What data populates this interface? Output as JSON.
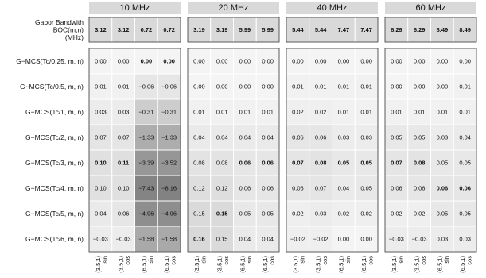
{
  "chart_data": {
    "type": "heatmap",
    "panels": [
      {
        "title": "10 MHz",
        "bandwidth": [
          "3.12",
          "3.12",
          "0.72",
          "0.72"
        ],
        "cells": [
          [
            "0.00",
            "0.00",
            "0.00",
            "0.00"
          ],
          [
            "0.01",
            "0.01",
            "-0.06",
            "-0.06"
          ],
          [
            "0.03",
            "0.03",
            "-0.31",
            "-0.31"
          ],
          [
            "0.07",
            "0.07",
            "-1.33",
            "-1.33"
          ],
          [
            "0.10",
            "0.11",
            "-3.39",
            "-3.52"
          ],
          [
            "0.10",
            "0.10",
            "-7.43",
            "-8.16"
          ],
          [
            "0.04",
            "0.06",
            "-4.96",
            "-4.96"
          ],
          [
            "-0.03",
            "-0.03",
            "-1.58",
            "-1.58"
          ]
        ],
        "bold": [
          [
            0,
            2
          ],
          [
            0,
            3
          ],
          [
            4,
            0
          ],
          [
            4,
            1
          ]
        ]
      },
      {
        "title": "20 MHz",
        "bandwidth": [
          "3.19",
          "3.19",
          "5.99",
          "5.99"
        ],
        "cells": [
          [
            "0.00",
            "0.00",
            "0.00",
            "0.00"
          ],
          [
            "0.00",
            "0.00",
            "0.00",
            "0.00"
          ],
          [
            "0.01",
            "0.01",
            "0.01",
            "0.01"
          ],
          [
            "0.04",
            "0.04",
            "0.04",
            "0.04"
          ],
          [
            "0.08",
            "0.08",
            "0.06",
            "0.06"
          ],
          [
            "0.12",
            "0.12",
            "0.06",
            "0.06"
          ],
          [
            "0.15",
            "0.15",
            "0.05",
            "0.05"
          ],
          [
            "0.16",
            "0.15",
            "0.04",
            "0.04"
          ]
        ],
        "bold": [
          [
            4,
            2
          ],
          [
            4,
            3
          ],
          [
            6,
            1
          ],
          [
            7,
            0
          ]
        ]
      },
      {
        "title": "40 MHz",
        "bandwidth": [
          "5.44",
          "5.44",
          "7.47",
          "7.47"
        ],
        "cells": [
          [
            "0.00",
            "0.00",
            "0.00",
            "0.00"
          ],
          [
            "0.01",
            "0.01",
            "0.01",
            "0.01"
          ],
          [
            "0.02",
            "0.02",
            "0.01",
            "0.01"
          ],
          [
            "0.06",
            "0.06",
            "0.03",
            "0.03"
          ],
          [
            "0.07",
            "0.08",
            "0.05",
            "0.05"
          ],
          [
            "0.06",
            "0.07",
            "0.04",
            "0.05"
          ],
          [
            "0.02",
            "0.03",
            "0.02",
            "0.02"
          ],
          [
            "-0.02",
            "-0.02",
            "0.00",
            "0.00"
          ]
        ],
        "bold": [
          [
            4,
            0
          ],
          [
            4,
            1
          ],
          [
            4,
            2
          ],
          [
            4,
            3
          ]
        ]
      },
      {
        "title": "60 MHz",
        "bandwidth": [
          "6.29",
          "6.29",
          "8.49",
          "8.49"
        ],
        "cells": [
          [
            "0.00",
            "0.00",
            "0.00",
            "0.00"
          ],
          [
            "0.00",
            "0.00",
            "0.00",
            "0.01"
          ],
          [
            "0.01",
            "0.01",
            "0.01",
            "0.01"
          ],
          [
            "0.05",
            "0.05",
            "0.03",
            "0.04"
          ],
          [
            "0.07",
            "0.08",
            "0.05",
            "0.05"
          ],
          [
            "0.06",
            "0.06",
            "0.06",
            "0.06"
          ],
          [
            "0.02",
            "0.02",
            "0.05",
            "0.05"
          ],
          [
            "-0.03",
            "-0.03",
            "0.03",
            "0.03"
          ]
        ],
        "bold": [
          [
            4,
            0
          ],
          [
            4,
            1
          ],
          [
            5,
            2
          ],
          [
            5,
            3
          ]
        ]
      }
    ],
    "bandwidth_label": [
      "Gabor Bandwith",
      "BOC(m,n)",
      "(MHz)"
    ],
    "row_labels": [
      "G−MCS(Tc/0.25, m, n)",
      "G−MCS(Tc/0.5, m, n)",
      "G−MCS(Tc/1, m, n)",
      "G−MCS(Tc/2, m, n)",
      "G−MCS(Tc/3, m, n)",
      "G−MCS(Tc/4, m, n)",
      "G−MCS(Tc/5, m, n)",
      "G−MCS(Tc/6, m, n)"
    ],
    "column_labels": [
      {
        "line1": "(3.5,1)",
        "line2": "sin"
      },
      {
        "line1": "(3.5,1)",
        "line2": "cos"
      },
      {
        "line1": "(6.5,1)",
        "line2": "sin"
      },
      {
        "line1": "(6.5,1)",
        "line2": "cos"
      }
    ],
    "colors": {
      "strip": "#d9d9d9",
      "cell_light": "#f5f5f5",
      "cell_dark": "#7f7f7f",
      "grid_line": "#ffffff",
      "border": "#333333"
    }
  }
}
